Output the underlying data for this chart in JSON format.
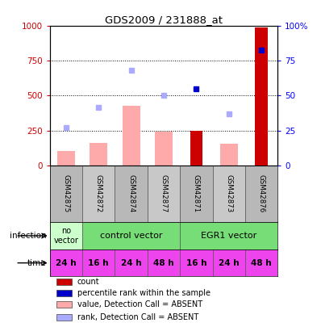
{
  "title": "GDS2009 / 231888_at",
  "samples": [
    "GSM42875",
    "GSM42872",
    "GSM42874",
    "GSM42877",
    "GSM42871",
    "GSM42873",
    "GSM42876"
  ],
  "bar_values_pink": [
    100,
    160,
    430,
    240,
    0,
    155,
    0
  ],
  "bar_values_red": [
    0,
    0,
    0,
    0,
    248,
    0,
    990
  ],
  "dot_values_blue": [
    0,
    0,
    0,
    0,
    550,
    0,
    830
  ],
  "dot_values_lightblue": [
    270,
    415,
    685,
    505,
    0,
    370,
    0
  ],
  "ylim": [
    0,
    1000
  ],
  "y_ticks_left": [
    0,
    250,
    500,
    750,
    1000
  ],
  "y_ticks_right_vals": [
    0,
    25,
    50,
    75,
    100
  ],
  "y_ticks_right_labels": [
    "0",
    "25",
    "50",
    "75",
    "100%"
  ],
  "time_labels": [
    "24 h",
    "16 h",
    "24 h",
    "48 h",
    "16 h",
    "24 h",
    "48 h"
  ],
  "time_color": "#ee44ee",
  "legend_items": [
    {
      "color": "#cc0000",
      "label": "count"
    },
    {
      "color": "#0000cc",
      "label": "percentile rank within the sample"
    },
    {
      "color": "#ffaaaa",
      "label": "value, Detection Call = ABSENT"
    },
    {
      "color": "#aaaaff",
      "label": "rank, Detection Call = ABSENT"
    }
  ]
}
